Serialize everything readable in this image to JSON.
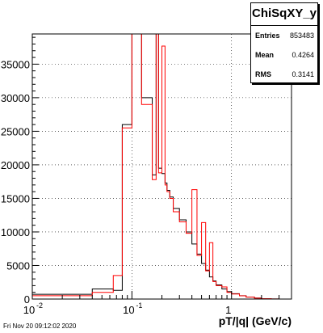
{
  "chart_data": {
    "type": "histogram",
    "title": "ChiSqXY_y",
    "xlabel": "pT/|q| (GeV/c)",
    "ylabel": "",
    "xscale": "log",
    "xlim": [
      0.01,
      4
    ],
    "ylim": [
      0,
      39500
    ],
    "grid": true,
    "y_ticks": [
      0,
      5000,
      10000,
      15000,
      20000,
      25000,
      30000,
      35000
    ],
    "y_tick_labels": [
      "0",
      "5000",
      "10000",
      "15000",
      "20000",
      "25000",
      "30000",
      "35000"
    ],
    "x_ticks": [
      0.01,
      0.1,
      1
    ],
    "x_tick_labels": [
      "10",
      "10",
      "1"
    ],
    "x_tick_exponents": [
      "-2",
      "-1",
      ""
    ],
    "series": [
      {
        "color": "#000000",
        "edges": [
          0.01,
          0.04,
          0.065,
          0.08,
          0.1,
          0.125,
          0.16,
          0.175,
          0.185,
          0.2,
          0.215,
          0.225,
          0.24,
          0.26,
          0.3,
          0.35,
          0.4,
          0.45,
          0.5,
          0.55,
          0.6,
          0.65,
          0.7,
          0.8,
          0.9,
          1.0,
          1.2,
          1.4,
          1.7,
          2.0,
          2.5,
          3.0
        ],
        "values": [
          700,
          1500,
          1300,
          26000,
          39500,
          30000,
          18500,
          39500,
          19500,
          18700,
          17300,
          16200,
          15200,
          13500,
          11800,
          10000,
          8200,
          6700,
          5300,
          4300,
          3300,
          2700,
          2100,
          1500,
          1100,
          800,
          500,
          300,
          150,
          60,
          20
        ]
      },
      {
        "color": "#ff0000",
        "edges": [
          0.01,
          0.04,
          0.065,
          0.08,
          0.1,
          0.125,
          0.16,
          0.175,
          0.185,
          0.2,
          0.215,
          0.225,
          0.24,
          0.26,
          0.3,
          0.35,
          0.4,
          0.45,
          0.5,
          0.55,
          0.6,
          0.65,
          0.7,
          0.8,
          0.9,
          1.0,
          1.2,
          1.4,
          1.7,
          2.0,
          2.5,
          3.0
        ],
        "values": [
          500,
          1000,
          3500,
          25500,
          39500,
          29000,
          17800,
          39500,
          18800,
          37700,
          17000,
          16000,
          15000,
          13000,
          11500,
          9800,
          16300,
          6500,
          11400,
          4200,
          8400,
          2600,
          2000,
          1800,
          1000,
          750,
          480,
          280,
          140,
          55,
          15
        ]
      }
    ]
  },
  "stats": {
    "title": "ChiSqXY_y",
    "rows": [
      {
        "label": "Entries",
        "value": "853483"
      },
      {
        "label": "Mean",
        "value": "0.4264"
      },
      {
        "label": "RMS",
        "value": "0.3141"
      }
    ]
  },
  "timestamp": "Fri Nov 20 09:12:02 2020"
}
